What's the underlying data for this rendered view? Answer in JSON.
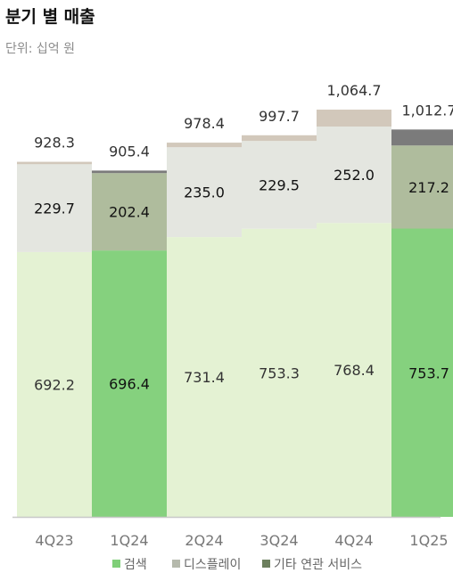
{
  "title": "분기 별 매출",
  "unit_label": "단위: 십억 원",
  "colors": {
    "search_current": "#85d17e",
    "search_past": "#e4f2d3",
    "display_current": "#afbc9d",
    "display_past": "#e4e6e0",
    "other_current": "#7b7b7b",
    "other_past": "#d2c8bb",
    "legend_search": "#7fcf78",
    "legend_display": "#b5b9ac",
    "legend_other": "#6c7f5d",
    "axis": "#c8c8c8",
    "tick_text": "#777777",
    "label_text": "#333333"
  },
  "chart_data": {
    "type": "bar",
    "stacked": true,
    "categories": [
      "4Q23",
      "1Q24",
      "2Q24",
      "3Q24",
      "4Q24",
      "1Q25"
    ],
    "series": [
      {
        "name": "검색",
        "values": [
          692.2,
          696.4,
          731.4,
          753.3,
          768.4,
          753.7
        ]
      },
      {
        "name": "디스플레이",
        "values": [
          229.7,
          202.4,
          235.0,
          229.5,
          252.0,
          217.2
        ]
      },
      {
        "name": "기타 연관 서비스",
        "values": [
          6.4,
          6.6,
          12.0,
          14.9,
          44.3,
          41.8
        ]
      }
    ],
    "totals": [
      928.3,
      905.4,
      978.4,
      997.7,
      1064.7,
      1012.7
    ],
    "value_labels": {
      "search": [
        "692.2",
        "696.4",
        "731.4",
        "753.3",
        "768.4",
        "753.7"
      ],
      "display": [
        "229.7",
        "202.4",
        "235.0",
        "229.5",
        "252.0",
        "217.2"
      ],
      "totals": [
        "928.3",
        "905.4",
        "978.4",
        "997.7",
        "1,064.7",
        "1,012.7"
      ]
    },
    "highlighted_categories": [
      "1Q24",
      "1Q25"
    ],
    "ylim": [
      0,
      1130
    ],
    "grid": false,
    "legend_position": "bottom"
  }
}
